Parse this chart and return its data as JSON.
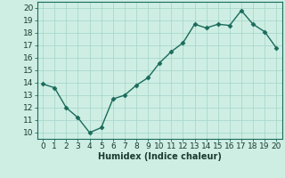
{
  "x": [
    0,
    1,
    2,
    3,
    4,
    5,
    6,
    7,
    8,
    9,
    10,
    11,
    12,
    13,
    14,
    15,
    16,
    17,
    18,
    19,
    20
  ],
  "y": [
    13.9,
    13.6,
    12.0,
    11.2,
    10.0,
    10.4,
    12.7,
    13.0,
    13.8,
    14.4,
    15.6,
    16.5,
    17.2,
    18.7,
    18.4,
    18.7,
    18.6,
    19.8,
    18.7,
    18.1,
    16.8
  ],
  "line_color": "#1a6b5a",
  "marker": "D",
  "marker_size": 2.5,
  "line_width": 1.0,
  "background_color": "#ceeee4",
  "grid_color": "#aad8cc",
  "xlabel": "Humidex (Indice chaleur)",
  "xlabel_fontsize": 7,
  "xlim": [
    -0.5,
    20.5
  ],
  "ylim": [
    9.5,
    20.5
  ],
  "xticks": [
    0,
    1,
    2,
    3,
    4,
    5,
    6,
    7,
    8,
    9,
    10,
    11,
    12,
    13,
    14,
    15,
    16,
    17,
    18,
    19,
    20
  ],
  "yticks": [
    10,
    11,
    12,
    13,
    14,
    15,
    16,
    17,
    18,
    19,
    20
  ],
  "tick_fontsize": 6.5
}
